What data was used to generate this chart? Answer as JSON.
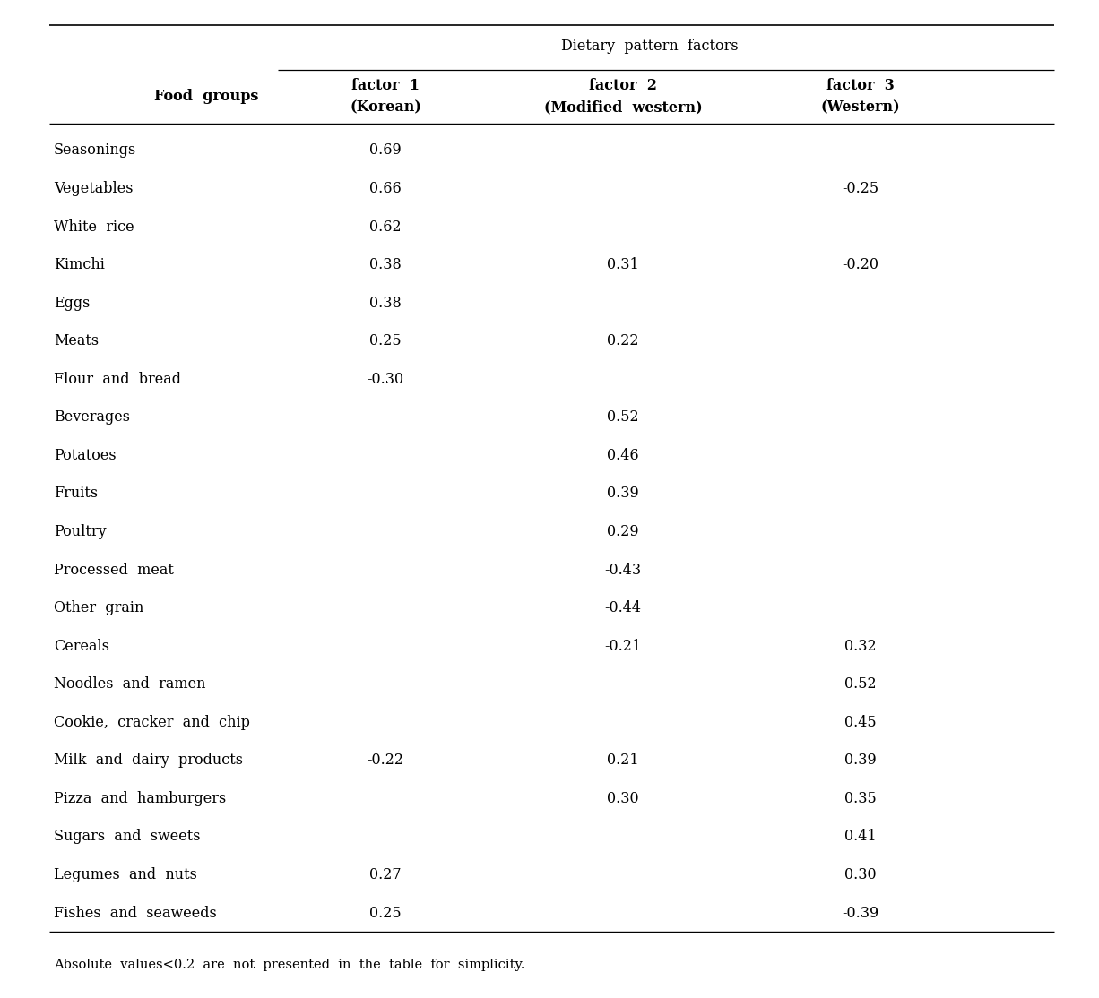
{
  "title": "Dietary  pattern  factors",
  "col_header_line1": [
    "factor  1",
    "factor  2",
    "factor  3"
  ],
  "col_header_line2": [
    "(Korean)",
    "(Modified  western)",
    "(Western)"
  ],
  "food_group_header": "Food  groups",
  "food_groups": [
    "Seasonings",
    "Vegetables",
    "White  rice",
    "Kimchi",
    "Eggs",
    "Meats",
    "Flour  and  bread",
    "Beverages",
    "Potatoes",
    "Fruits",
    "Poultry",
    "Processed  meat",
    "Other  grain",
    "Cereals",
    "Noodles  and  ramen",
    "Cookie,  cracker  and  chip",
    "Milk  and  dairy  products",
    "Pizza  and  hamburgers",
    "Sugars  and  sweets",
    "Legumes  and  nuts",
    "Fishes  and  seaweeds"
  ],
  "factor1": [
    0.69,
    0.66,
    0.62,
    0.38,
    0.38,
    0.25,
    -0.3,
    null,
    null,
    null,
    null,
    null,
    null,
    null,
    null,
    null,
    -0.22,
    null,
    null,
    0.27,
    0.25
  ],
  "factor2": [
    null,
    null,
    null,
    0.31,
    null,
    0.22,
    null,
    0.52,
    0.46,
    0.39,
    0.29,
    -0.43,
    -0.44,
    -0.21,
    null,
    null,
    0.21,
    0.3,
    null,
    null,
    null
  ],
  "factor3": [
    null,
    -0.25,
    null,
    -0.2,
    null,
    null,
    null,
    null,
    null,
    null,
    null,
    null,
    null,
    0.32,
    0.52,
    0.45,
    0.39,
    0.35,
    0.41,
    0.3,
    -0.39
  ],
  "footnote": "Absolute  values<0.2  are  not  presented  in  the  table  for  simplicity.",
  "bg_color": "#ffffff",
  "text_color": "#000000",
  "title_fontsize": 11.5,
  "header_fontsize": 11.5,
  "body_fontsize": 11.5,
  "footnote_fontsize": 10.5,
  "fig_width": 12.26,
  "fig_height": 11.14,
  "dpi": 100
}
